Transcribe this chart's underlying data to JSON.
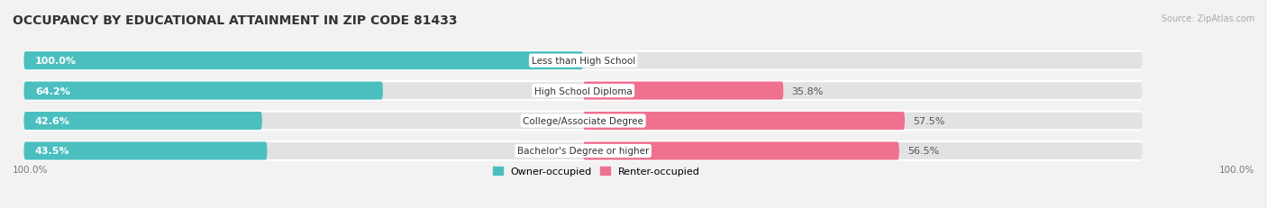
{
  "title": "OCCUPANCY BY EDUCATIONAL ATTAINMENT IN ZIP CODE 81433",
  "source": "Source: ZipAtlas.com",
  "categories": [
    "Less than High School",
    "High School Diploma",
    "College/Associate Degree",
    "Bachelor's Degree or higher"
  ],
  "owner_pct": [
    100.0,
    64.2,
    42.6,
    43.5
  ],
  "renter_pct": [
    0.0,
    35.8,
    57.5,
    56.5
  ],
  "owner_color": "#4BBFBF",
  "renter_color": "#F07090",
  "bg_color": "#f2f2f2",
  "bar_bg_color": "#e2e2e2",
  "title_fontsize": 10,
  "label_fontsize": 8,
  "axis_label_fontsize": 7.5,
  "legend_fontsize": 8,
  "bar_height": 0.6,
  "left_axis_label": "100.0%",
  "right_axis_label": "100.0%",
  "owner_label": "Owner-occupied",
  "renter_label": "Renter-occupied"
}
